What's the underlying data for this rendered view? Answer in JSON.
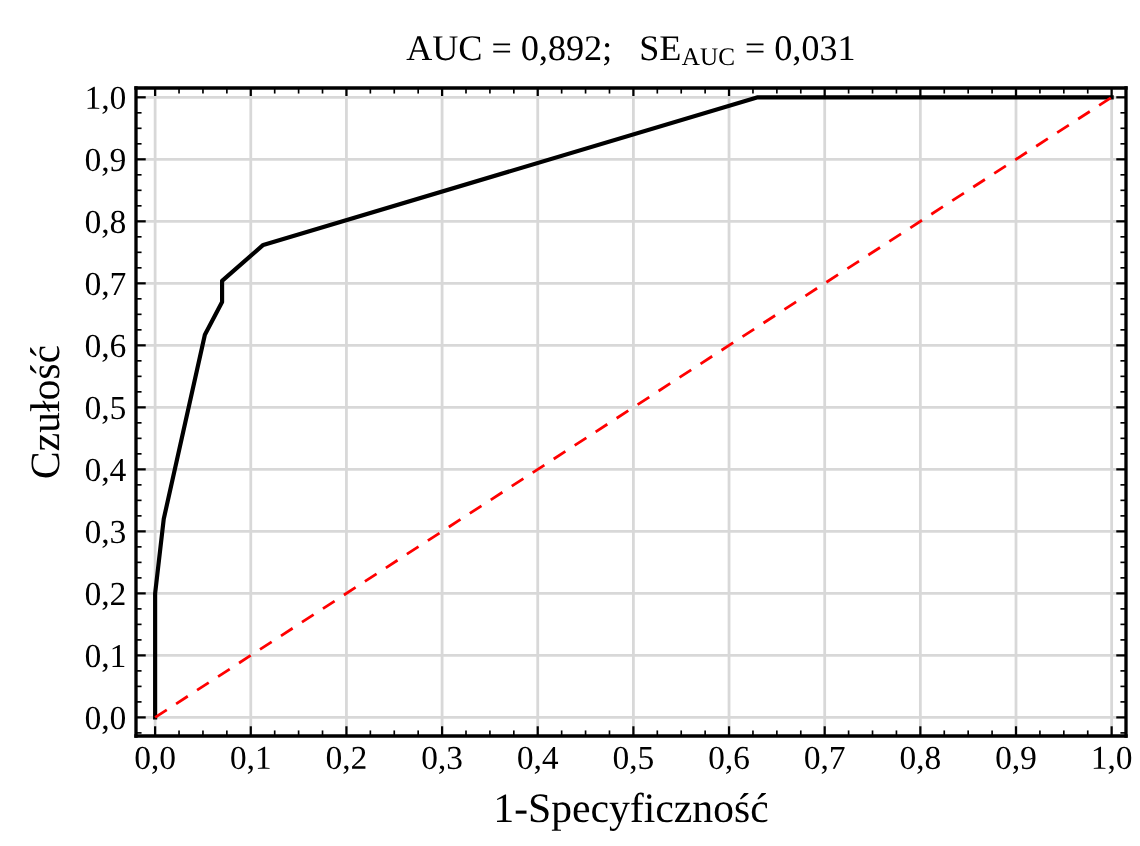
{
  "chart_data": {
    "type": "line",
    "title": "AUC = 0,892;   SE$_{AUC}$ = 0,031",
    "xlabel": "1-Specyficzność",
    "ylabel": "Czułość",
    "series": [
      {
        "color": "#000000",
        "line_style": "solid",
        "x": [
          0,
          0,
          0.009,
          0.052,
          0.07,
          0.07,
          0.113,
          0.63,
          1.0
        ],
        "values": [
          0,
          0.2,
          0.32,
          0.617,
          0.67,
          0.704,
          0.762,
          1.0,
          1.0
        ]
      },
      {
        "color": "#ff0000",
        "line_style": "dashed",
        "x": [
          0,
          1.0
        ],
        "values": [
          0,
          1.0
        ]
      }
    ],
    "xlim": [
      -0.02,
      1.015
    ],
    "ylim": [
      -0.03,
      1.015
    ],
    "xticks": [
      {
        "value": 0,
        "label": "0,0"
      },
      {
        "value": 0.1,
        "label": "0,1"
      },
      {
        "value": 0.2,
        "label": "0,2"
      },
      {
        "value": 0.3,
        "label": "0,3"
      },
      {
        "value": 0.4,
        "label": "0,4"
      },
      {
        "value": 0.5,
        "label": "0,5"
      },
      {
        "value": 0.6,
        "label": "0,6"
      },
      {
        "value": 0.7,
        "label": "0,7"
      },
      {
        "value": 0.8,
        "label": "0,8"
      },
      {
        "value": 0.9,
        "label": "0,9"
      },
      {
        "value": 1.0,
        "label": "1,0"
      }
    ],
    "yticks": [
      {
        "value": 0,
        "label": "0,0"
      },
      {
        "value": 0.1,
        "label": "0,1"
      },
      {
        "value": 0.2,
        "label": "0,2"
      },
      {
        "value": 0.3,
        "label": "0,3"
      },
      {
        "value": 0.4,
        "label": "0,4"
      },
      {
        "value": 0.5,
        "label": "0,5"
      },
      {
        "value": 0.6,
        "label": "0,6"
      },
      {
        "value": 0.7,
        "label": "0,7"
      },
      {
        "value": 0.8,
        "label": "0,8"
      },
      {
        "value": 0.9,
        "label": "0,9"
      },
      {
        "value": 1.0,
        "label": "1,0"
      }
    ],
    "grid": true
  }
}
